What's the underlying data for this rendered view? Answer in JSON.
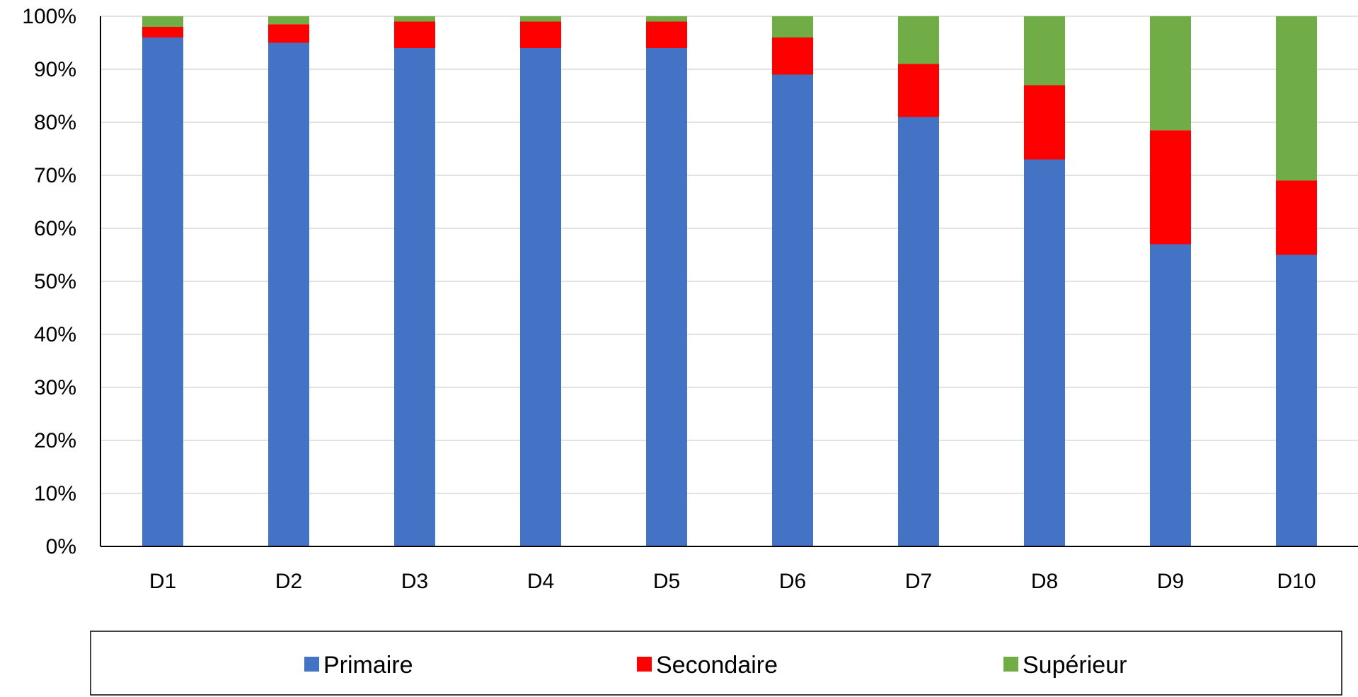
{
  "chart_data": {
    "type": "bar",
    "stacked": true,
    "categories": [
      "D1",
      "D2",
      "D3",
      "D4",
      "D5",
      "D6",
      "D7",
      "D8",
      "D9",
      "D10"
    ],
    "series": [
      {
        "name": "Primaire",
        "color": "#4472C4",
        "values": [
          96,
          95,
          94,
          94,
          94,
          89,
          81,
          73,
          57,
          55
        ]
      },
      {
        "name": "Secondaire",
        "color": "#FF0000",
        "values": [
          2,
          3.5,
          5,
          5,
          5,
          7,
          10,
          14,
          21.5,
          14
        ]
      },
      {
        "name": "Supérieur",
        "color": "#70AD47",
        "values": [
          2,
          1.5,
          1,
          1,
          1,
          4,
          9,
          13,
          21.5,
          31
        ]
      }
    ],
    "y_ticks": [
      "0%",
      "10%",
      "20%",
      "30%",
      "40%",
      "50%",
      "60%",
      "70%",
      "80%",
      "90%",
      "100%"
    ],
    "ylim": [
      0,
      100
    ],
    "grid": true,
    "legend_position": "bottom"
  }
}
